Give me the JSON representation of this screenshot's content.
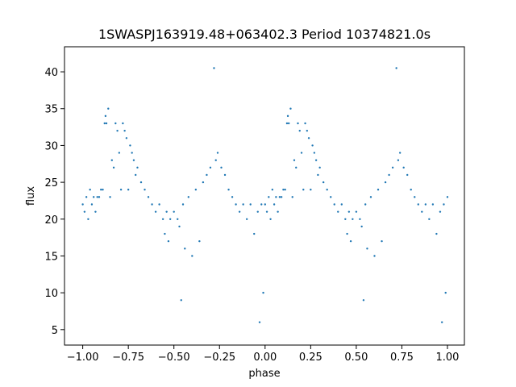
{
  "chart_data": {
    "type": "scatter",
    "title": "1SWASPJ163919.48+063402.3 Period 10374821.0s",
    "xlabel": "phase",
    "ylabel": "flux",
    "color": "#1f77b4",
    "xlim": [
      -1.1,
      1.093
    ],
    "ylim": [
      2.9,
      43.4
    ],
    "xticks": [
      {
        "value": -1,
        "label": "−1.00"
      },
      {
        "value": -0.75,
        "label": "−0.75"
      },
      {
        "value": -0.5,
        "label": "−0.50"
      },
      {
        "value": -0.25,
        "label": "−0.25"
      },
      {
        "value": 0,
        "label": "0.00"
      },
      {
        "value": 0.25,
        "label": "0.25"
      },
      {
        "value": 0.5,
        "label": "0.50"
      },
      {
        "value": 0.75,
        "label": "0.75"
      },
      {
        "value": 1,
        "label": "1.00"
      }
    ],
    "yticks": [
      5,
      10,
      15,
      20,
      25,
      30,
      35,
      40
    ],
    "x": [
      -1,
      -0.99,
      -0.98,
      -0.97,
      -0.96,
      -0.95,
      -0.94,
      -0.93,
      -0.92,
      -0.91,
      -0.9,
      -0.89,
      -0.88,
      -0.875,
      -0.87,
      -0.86,
      -0.85,
      -0.84,
      -0.83,
      -0.82,
      -0.81,
      -0.8,
      -0.79,
      -0.78,
      -0.77,
      -0.76,
      -0.75,
      -0.74,
      -0.73,
      -0.72,
      -0.71,
      -0.7,
      -0.68,
      -0.66,
      -0.64,
      -0.62,
      -0.6,
      -0.58,
      -0.56,
      -0.55,
      -0.54,
      -0.53,
      -0.52,
      -0.5,
      -0.48,
      -0.47,
      -0.46,
      -0.45,
      -0.44,
      -0.42,
      -0.4,
      -0.38,
      -0.36,
      -0.34,
      -0.32,
      -0.3,
      -0.28,
      -0.27,
      -0.26,
      -0.24,
      -0.22,
      -0.2,
      -0.18,
      -0.16,
      -0.14,
      -0.12,
      -0.1,
      -0.08,
      -0.06,
      -0.04,
      -0.03,
      -0.02,
      -0.01,
      0,
      0.01,
      0.02,
      0.03,
      0.04,
      0.05,
      0.06,
      0.07,
      0.08,
      0.09,
      0.1,
      0.11,
      0.12,
      0.125,
      0.13,
      0.14,
      0.15,
      0.16,
      0.17,
      0.18,
      0.19,
      0.2,
      0.21,
      0.22,
      0.23,
      0.24,
      0.25,
      0.26,
      0.27,
      0.28,
      0.29,
      0.3,
      0.32,
      0.34,
      0.36,
      0.38,
      0.4,
      0.42,
      0.44,
      0.45,
      0.46,
      0.47,
      0.48,
      0.5,
      0.52,
      0.53,
      0.54,
      0.55,
      0.56,
      0.58,
      0.6,
      0.62,
      0.64,
      0.66,
      0.68,
      0.7,
      0.72,
      0.73,
      0.74,
      0.76,
      0.78,
      0.8,
      0.82,
      0.84,
      0.86,
      0.88,
      0.9,
      0.92,
      0.94,
      0.96,
      0.97,
      0.98,
      0.99,
      1
    ],
    "y": [
      22,
      21,
      23,
      20,
      24,
      22,
      23,
      21,
      23,
      23,
      24,
      24,
      33,
      34,
      33,
      35,
      23,
      28,
      27,
      33,
      32,
      29,
      24,
      33,
      32,
      31,
      24,
      30,
      29,
      28,
      26,
      27,
      25,
      24,
      23,
      22,
      21,
      22,
      20,
      18,
      21,
      17,
      20,
      21,
      20,
      19,
      9,
      22,
      16,
      23,
      15,
      24,
      17,
      25,
      26,
      27,
      40.5,
      28,
      29,
      27,
      26,
      24,
      23,
      22,
      21,
      22,
      20,
      22,
      18,
      21,
      6,
      22,
      10,
      22,
      21,
      23,
      20,
      24,
      22,
      23,
      21,
      23,
      23,
      24,
      24,
      33,
      34,
      33,
      35,
      23,
      28,
      27,
      33,
      32,
      29,
      24,
      33,
      32,
      31,
      24,
      30,
      29,
      28,
      26,
      27,
      25,
      24,
      23,
      22,
      21,
      22,
      20,
      18,
      21,
      17,
      20,
      21,
      20,
      19,
      9,
      22,
      16,
      23,
      15,
      24,
      17,
      25,
      26,
      27,
      40.5,
      28,
      29,
      27,
      26,
      24,
      23,
      22,
      21,
      22,
      20,
      22,
      18,
      21,
      6,
      22,
      10,
      23
    ]
  }
}
